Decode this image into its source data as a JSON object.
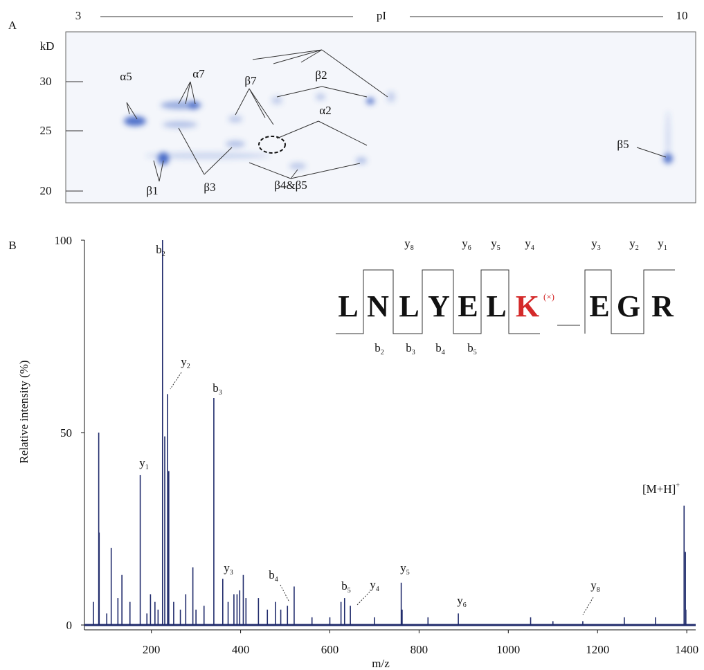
{
  "gel": {
    "panel": "A",
    "pi_label": "pI",
    "pi_low": "3",
    "pi_high": "10",
    "mw_unit": "kD",
    "mw_ticks": [
      "30",
      "25",
      "20"
    ],
    "spots": [
      "α5",
      "α7",
      "β7",
      "β2",
      "α2",
      "β5",
      "β1",
      "β3",
      "β4&β5"
    ]
  },
  "chart_data": {
    "type": "spectrum",
    "panel": "B",
    "xlabel": "m/z",
    "ylabel": "Relative intensity (%)",
    "color": "#1f2a6b",
    "xlim": [
      50,
      1420
    ],
    "xticks": [
      200,
      400,
      600,
      800,
      1000,
      1200,
      1400
    ],
    "ylim": [
      0,
      100
    ],
    "yticks": [
      0,
      50,
      100
    ],
    "x": [
      70,
      82,
      83,
      100,
      110,
      125,
      134,
      152,
      175,
      190,
      198,
      208,
      215,
      225,
      230,
      236,
      239,
      250,
      265,
      277,
      293,
      300,
      318,
      340,
      360,
      372,
      385,
      392,
      398,
      406,
      412,
      440,
      460,
      478,
      490,
      505,
      520,
      560,
      600,
      625,
      633,
      646,
      700,
      760,
      762,
      820,
      888,
      1050,
      1100,
      1167,
      1260,
      1330,
      1394,
      1397,
      1398
    ],
    "values": [
      6,
      50,
      24,
      3,
      20,
      7,
      13,
      6,
      39,
      3,
      8,
      6,
      4,
      100,
      49,
      60,
      40,
      6,
      4,
      8,
      15,
      4,
      5,
      59,
      12,
      6,
      8,
      8,
      9,
      13,
      7,
      7,
      4,
      6,
      4,
      5,
      10,
      2,
      2,
      6,
      7,
      5,
      2,
      11,
      4,
      2,
      3,
      2,
      1,
      1,
      2,
      2,
      31,
      19,
      4
    ],
    "peak_labels": [
      {
        "text": "b",
        "sub": "2"
      },
      {
        "text": "y",
        "sub": "2"
      },
      {
        "text": "b",
        "sub": "3"
      },
      {
        "text": "y",
        "sub": "1"
      },
      {
        "text": "y",
        "sub": "3"
      },
      {
        "text": "b",
        "sub": "4"
      },
      {
        "text": "b",
        "sub": "5"
      },
      {
        "text": "y",
        "sub": "4"
      },
      {
        "text": "y",
        "sub": "5"
      },
      {
        "text": "y",
        "sub": "6"
      },
      {
        "text": "y",
        "sub": "8"
      },
      {
        "text": "[M+H]",
        "sup": "+"
      }
    ],
    "sequence": [
      "L",
      "N",
      "L",
      "Y",
      "E",
      "L",
      "K",
      "E",
      "G",
      "R"
    ],
    "modification": "(×)",
    "y_ions": [
      {
        "text": "y",
        "sub": "8"
      },
      {
        "text": "y",
        "sub": "6"
      },
      {
        "text": "y",
        "sub": "5"
      },
      {
        "text": "y",
        "sub": "4"
      },
      {
        "text": "y",
        "sub": "3"
      },
      {
        "text": "y",
        "sub": "2"
      },
      {
        "text": "y",
        "sub": "1"
      }
    ],
    "b_ions": [
      {
        "text": "b",
        "sub": "2"
      },
      {
        "text": "b",
        "sub": "3"
      },
      {
        "text": "b",
        "sub": "4"
      },
      {
        "text": "b",
        "sub": "5"
      }
    ]
  }
}
